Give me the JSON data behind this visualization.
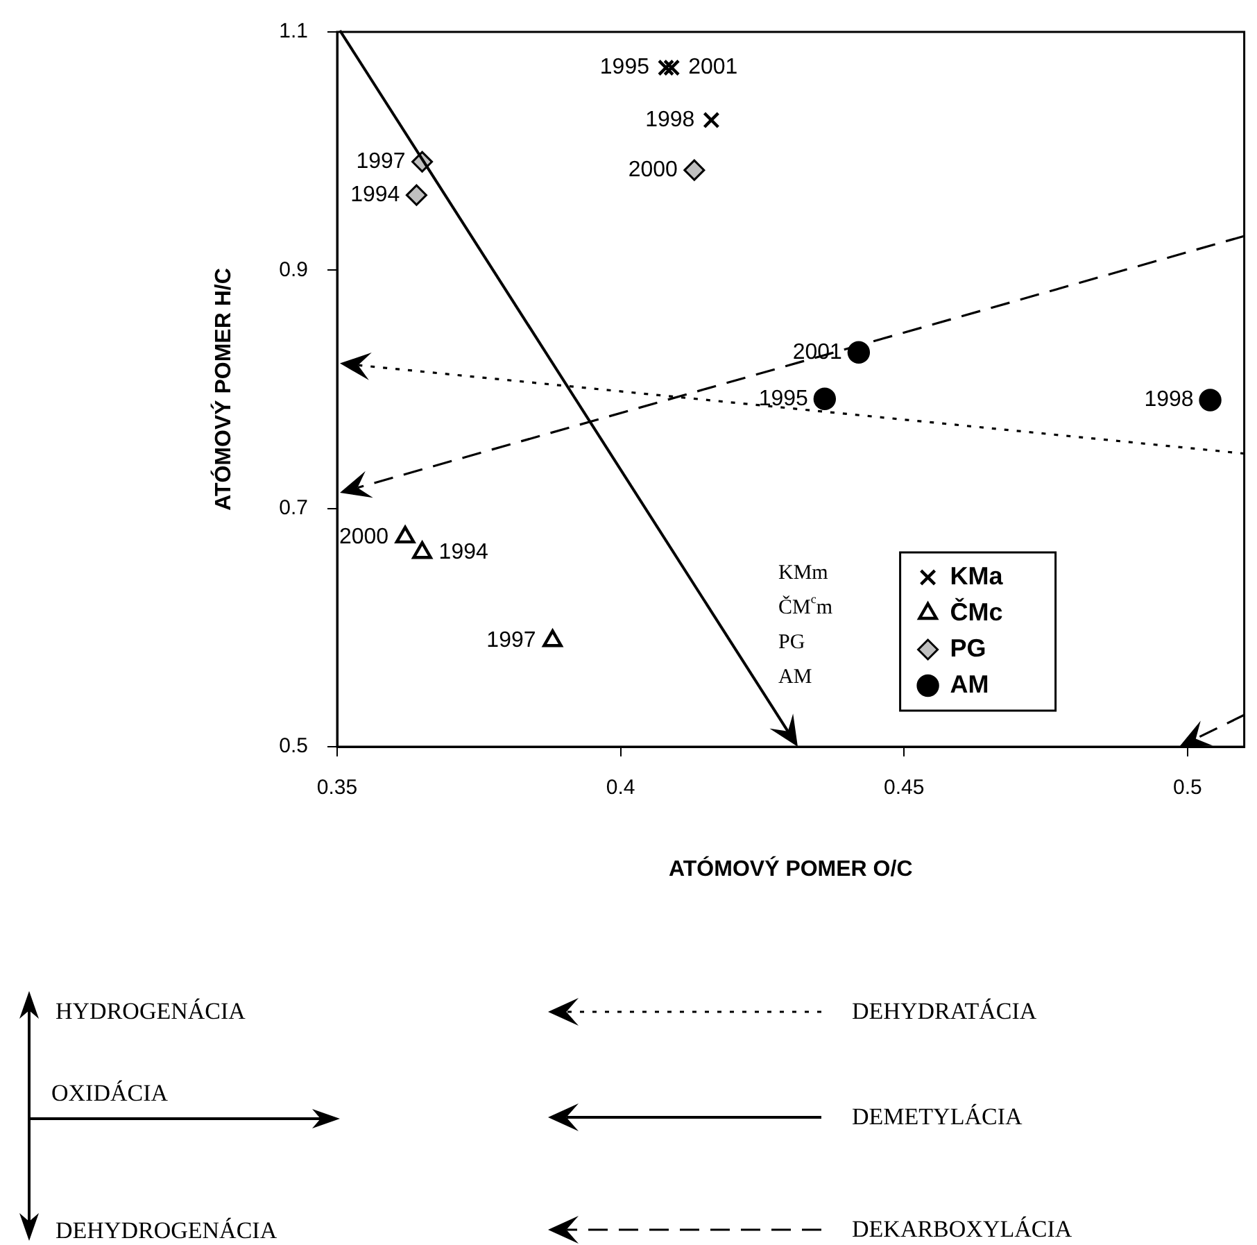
{
  "chart_data": {
    "type": "scatter",
    "xlabel": "ATÓMOVÝ POMER O/C",
    "ylabel": "ATÓMOVÝ POMER H/C",
    "xlim": [
      0.35,
      0.51
    ],
    "xticks": [
      0.35,
      0.4,
      0.45,
      0.5
    ],
    "ylim": [
      0.5,
      1.1
    ],
    "yticks": [
      0.5,
      0.7,
      0.9,
      1.1
    ],
    "grid": false,
    "legend": "bottom right",
    "series": [
      {
        "name": "KMa",
        "color": "#000000",
        "marker": "cross",
        "x": [
          0.408,
          0.409,
          0.416
        ],
        "values": [
          1.07,
          1.07,
          1.026
        ]
      },
      {
        "name": "ČMc",
        "color": "#000000",
        "marker": "triangle",
        "x": [
          0.362,
          0.365,
          0.388
        ],
        "values": [
          0.676,
          0.663,
          0.589
        ]
      },
      {
        "name": "PG",
        "color": "#c0c0c0",
        "marker": "diamond",
        "x": [
          0.365,
          0.364,
          0.413
        ],
        "values": [
          0.991,
          0.963,
          0.984
        ]
      },
      {
        "name": "AM",
        "color": "#000000",
        "marker": "circle",
        "x": [
          0.442,
          0.436,
          0.504
        ],
        "values": [
          0.831,
          0.792,
          0.791
        ]
      }
    ],
    "annotations": [
      {
        "text": "1995",
        "x": 0.408,
        "y": 1.07
      },
      {
        "text": "2001",
        "x": 0.409,
        "y": 1.07
      },
      {
        "text": "1998",
        "x": 0.416,
        "y": 1.026
      },
      {
        "text": "2000",
        "x": 0.362,
        "y": 0.676
      },
      {
        "text": "1994",
        "x": 0.365,
        "y": 0.663
      },
      {
        "text": "1997",
        "x": 0.388,
        "y": 0.589
      },
      {
        "text": "1997",
        "x": 0.365,
        "y": 0.991
      },
      {
        "text": "1994",
        "x": 0.364,
        "y": 0.963
      },
      {
        "text": "2000",
        "x": 0.413,
        "y": 0.984
      },
      {
        "text": "2001",
        "x": 0.442,
        "y": 0.831
      },
      {
        "text": "1995",
        "x": 0.436,
        "y": 0.792
      },
      {
        "text": "1998",
        "x": 0.504,
        "y": 0.791
      },
      "KMm\nČM$^{c}$m\nPG\nAM",
      "HYDROGENÁCIA",
      "OXIDÁCIA",
      "DEHYDROGENÁCIA",
      "DEHYDRATÁCIA",
      "DEMETYLÁCIA",
      "DEKARBOXYLÁCIA"
    ]
  }
}
